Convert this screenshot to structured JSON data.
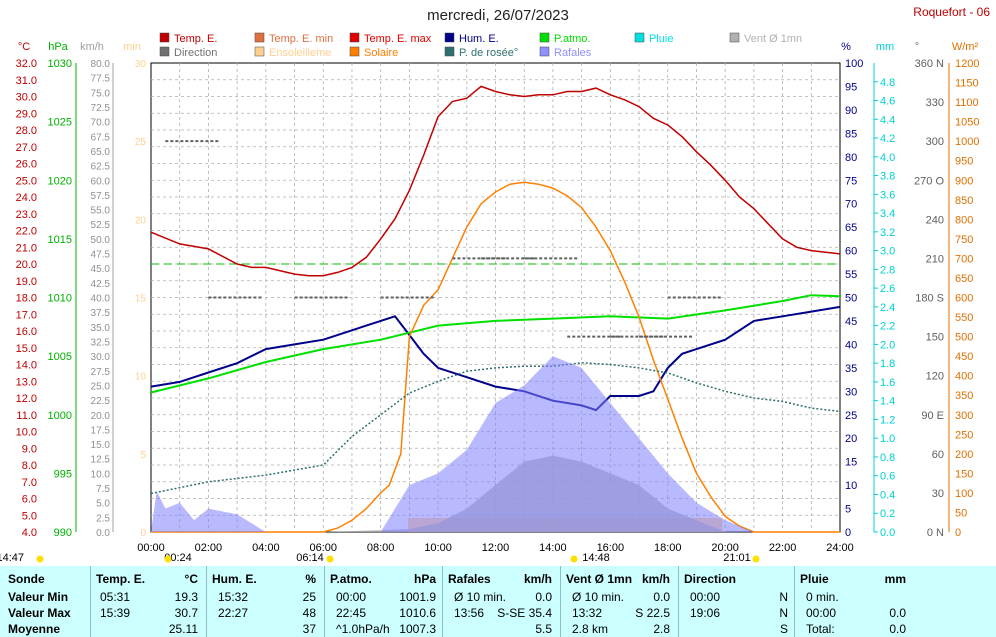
{
  "title": "mercredi, 26/07/2023",
  "station": "Roquefort - 06",
  "legend": [
    {
      "label": "Temp. E.",
      "color": "#c00000"
    },
    {
      "label": "Temp. E. min",
      "color": "#e07040"
    },
    {
      "label": "Temp. E. max",
      "color": "#e00000"
    },
    {
      "label": "Hum. E.",
      "color": "#00008b"
    },
    {
      "label": "P.atmo.",
      "color": "#00e000"
    },
    {
      "label": "Pluie",
      "color": "#00e0e0"
    },
    {
      "label": "Vent Ø 1mn",
      "color": "#b0b0b0"
    },
    {
      "label": "Direction",
      "color": "#707070"
    },
    {
      "label": "Ensoleilleme",
      "color": "#ffd090"
    },
    {
      "label": "Solaire",
      "color": "#ff8000"
    },
    {
      "label": "P. de rosée°",
      "color": "#2f6f6f"
    },
    {
      "label": "Rafales",
      "color": "#9090ff"
    }
  ],
  "axes": {
    "temp": {
      "unit": "°C",
      "min": 4,
      "max": 32,
      "step": 1,
      "color": "#c00000"
    },
    "pressure": {
      "unit": "hPa",
      "min": 990,
      "max": 1030,
      "step": 5,
      "color": "#00b000"
    },
    "wind": {
      "unit": "km/h",
      "min": 0,
      "max": 80,
      "step": 2.5,
      "color": "#a0a0a0"
    },
    "minutes": {
      "unit": "min",
      "min": 0,
      "max": 30,
      "step": 5,
      "color": "#ffd090"
    },
    "humidity": {
      "unit": "%",
      "min": 0,
      "max": 100,
      "step": 5,
      "color": "#00008b"
    },
    "rain": {
      "unit": "mm",
      "min": 0,
      "max": 5,
      "step": 0.2,
      "color": "#00d0d0"
    },
    "direction": {
      "unit": "°",
      "ticks": [
        "0 N",
        "30",
        "60",
        "90 E",
        "120",
        "150",
        "180 S",
        "210",
        "240",
        "270 O",
        "300",
        "330",
        "360 N"
      ]
    },
    "solar": {
      "unit": "W/m²",
      "min": 0,
      "max": 1200,
      "step": 50,
      "color": "#e07000"
    },
    "x_ticks": [
      "00:00",
      "02:00",
      "04:00",
      "06:00",
      "08:00",
      "10:00",
      "12:00",
      "14:00",
      "16:00",
      "18:00",
      "20:00",
      "22:00",
      "24:00"
    ],
    "sun_marks": [
      "14:47",
      "00:24",
      "06:14",
      "14:48",
      "21:01"
    ]
  },
  "chart_data": {
    "type": "line",
    "x_unit": "hour",
    "series": [
      {
        "name": "Temp. E.",
        "axis": "temp",
        "x": [
          0,
          1,
          2,
          3,
          3.5,
          4,
          5,
          5.5,
          6,
          6.5,
          7,
          7.5,
          8,
          8.5,
          9,
          9.5,
          10,
          10.5,
          11,
          11.5,
          12,
          12.5,
          13,
          13.5,
          14,
          14.5,
          15,
          15.5,
          16,
          16.5,
          17,
          17.5,
          18,
          18.5,
          19,
          19.5,
          20,
          20.5,
          21,
          21.5,
          22,
          22.5,
          23,
          24
        ],
        "values": [
          21.9,
          21.2,
          20.9,
          20.0,
          19.8,
          19.8,
          19.4,
          19.3,
          19.3,
          19.5,
          19.8,
          20.4,
          21.5,
          22.7,
          24.4,
          26.5,
          28.8,
          29.7,
          29.9,
          30.6,
          30.3,
          30.1,
          30.0,
          30.1,
          30.1,
          30.3,
          30.3,
          30.5,
          30.1,
          29.8,
          29.4,
          28.7,
          28.3,
          27.6,
          26.7,
          25.9,
          25.0,
          24.0,
          23.3,
          22.4,
          21.5,
          21.0,
          20.8,
          20.6
        ]
      },
      {
        "name": "Hum. E.",
        "axis": "humidity",
        "x": [
          0,
          1,
          2,
          3,
          4,
          5,
          6,
          7,
          7.5,
          8,
          8.5,
          9,
          9.5,
          10,
          11,
          12,
          13,
          14,
          15,
          15.5,
          16,
          17,
          17.5,
          18,
          18.5,
          19,
          20,
          21,
          22,
          23,
          24
        ],
        "values": [
          31,
          32,
          34,
          36,
          39,
          40,
          41,
          43,
          44,
          45,
          46,
          42,
          38,
          35,
          33,
          31,
          30,
          28,
          27,
          26,
          29,
          29,
          30,
          35,
          38,
          39,
          41,
          45,
          46,
          47,
          48
        ]
      },
      {
        "name": "P.atmo.",
        "axis": "pressure",
        "x": [
          0,
          2,
          4,
          6,
          8,
          9,
          10,
          12,
          14,
          16,
          18,
          20,
          22,
          23,
          24
        ],
        "values": [
          1001.9,
          1003.1,
          1004.5,
          1005.6,
          1006.4,
          1007.0,
          1007.6,
          1008.0,
          1008.2,
          1008.4,
          1008.2,
          1008.9,
          1009.7,
          1010.2,
          1010.1
        ]
      },
      {
        "name": "Solaire",
        "axis": "solar",
        "x": [
          0,
          6,
          6.5,
          7,
          7.5,
          8,
          8.3,
          8.7,
          9,
          9.5,
          10,
          10.5,
          11,
          11.5,
          12,
          12.5,
          13,
          13.5,
          14,
          14.5,
          15,
          15.5,
          16,
          16.5,
          17,
          17.5,
          18,
          18.5,
          19,
          19.5,
          20,
          20.5,
          21,
          24
        ],
        "values": [
          0,
          0,
          10,
          30,
          60,
          100,
          120,
          200,
          500,
          580,
          620,
          700,
          780,
          840,
          870,
          890,
          895,
          890,
          880,
          860,
          830,
          780,
          720,
          640,
          550,
          440,
          340,
          240,
          150,
          90,
          40,
          15,
          0,
          0
        ]
      },
      {
        "name": "P. de rosée°",
        "axis": "temp",
        "x": [
          0,
          2,
          4,
          6,
          7,
          8,
          9,
          10,
          11,
          12,
          13,
          14,
          15,
          16,
          17,
          18,
          19,
          20,
          21,
          22,
          23,
          24
        ],
        "values": [
          6.3,
          7.0,
          7.4,
          8.0,
          9.7,
          11.0,
          12.3,
          13.0,
          13.6,
          13.8,
          13.9,
          13.9,
          14.1,
          14.0,
          13.8,
          13.5,
          12.9,
          12.4,
          12.0,
          11.8,
          11.4,
          11.2
        ]
      },
      {
        "name": "Vent Ø 1mn",
        "axis": "wind",
        "x": [
          0,
          3,
          6,
          9,
          10,
          11,
          12,
          13,
          14,
          15,
          16,
          17,
          18,
          19,
          20,
          21,
          22,
          24
        ],
        "values": [
          0,
          0,
          0,
          0.5,
          1.5,
          4,
          8,
          12,
          13,
          12,
          10,
          8,
          4,
          2,
          0,
          0,
          0,
          0
        ]
      },
      {
        "name": "Rafales",
        "axis": "wind",
        "x": [
          0,
          0.2,
          0.5,
          1,
          1.5,
          2,
          3,
          4,
          5,
          6,
          8,
          9,
          10,
          11,
          12,
          13,
          14,
          15,
          16,
          17,
          18,
          19,
          20,
          21,
          22,
          24
        ],
        "values": [
          0,
          7,
          4,
          5,
          2,
          4,
          3,
          0,
          0,
          0,
          0,
          8,
          10,
          14,
          22,
          25,
          30,
          28,
          22,
          16,
          10,
          5,
          2,
          0,
          0,
          0
        ]
      },
      {
        "name": "Direction",
        "axis": "direction",
        "x": [
          0.5,
          2,
          5,
          8,
          10.5,
          11.5,
          13,
          14.5,
          16,
          17,
          18
        ],
        "values": [
          300,
          180,
          180,
          180,
          210,
          210,
          210,
          150,
          150,
          150,
          180
        ]
      }
    ],
    "thresholds": [
      {
        "axis": "temp",
        "value": 20.0,
        "color": "#00c000",
        "style": "dashed"
      }
    ]
  },
  "table": {
    "headers": [
      "Sonde",
      "Temp. E.",
      "°C",
      "Hum. E.",
      "%",
      "P.atmo.",
      "hPa",
      "Rafales",
      "km/h",
      "Vent Ø 1mn",
      "km/h",
      "Direction",
      "",
      "Pluie",
      "mm"
    ],
    "rows": [
      {
        "label": "Valeur Min",
        "t_time": "05:31",
        "t_val": "19.3",
        "h_time": "15:32",
        "h_val": "25",
        "p_time": "00:00",
        "p_val": "1001.9",
        "r_time": "Ø 10 min.",
        "r_val": "0.0",
        "v_time": "Ø 10 min.",
        "v_val": "0.0",
        "d_time": "00:00",
        "d_val": "N",
        "pl_time": "0 min.",
        "pl_val": ""
      },
      {
        "label": "Valeur Max",
        "t_time": "15:39",
        "t_val": "30.7",
        "h_time": "22:27",
        "h_val": "48",
        "p_time": "22:45",
        "p_val": "1010.6",
        "r_time": "13:56",
        "r_val": "S-SE 35.4",
        "v_time": "13:32",
        "v_val": "S 22.5",
        "d_time": "19:06",
        "d_val": "N",
        "pl_time": "00:00",
        "pl_val": "0.0"
      },
      {
        "label": "Moyenne",
        "t_time": "",
        "t_val": "25.11",
        "h_time": "",
        "h_val": "37",
        "p_time": "^1.0hPa/h",
        "p_val": "1007.3",
        "r_time": "",
        "r_val": "5.5",
        "v_time": "2.8 km",
        "v_val": "2.8",
        "d_time": "",
        "d_val": "S",
        "pl_time": "Total:",
        "pl_val": "0.0"
      }
    ]
  }
}
